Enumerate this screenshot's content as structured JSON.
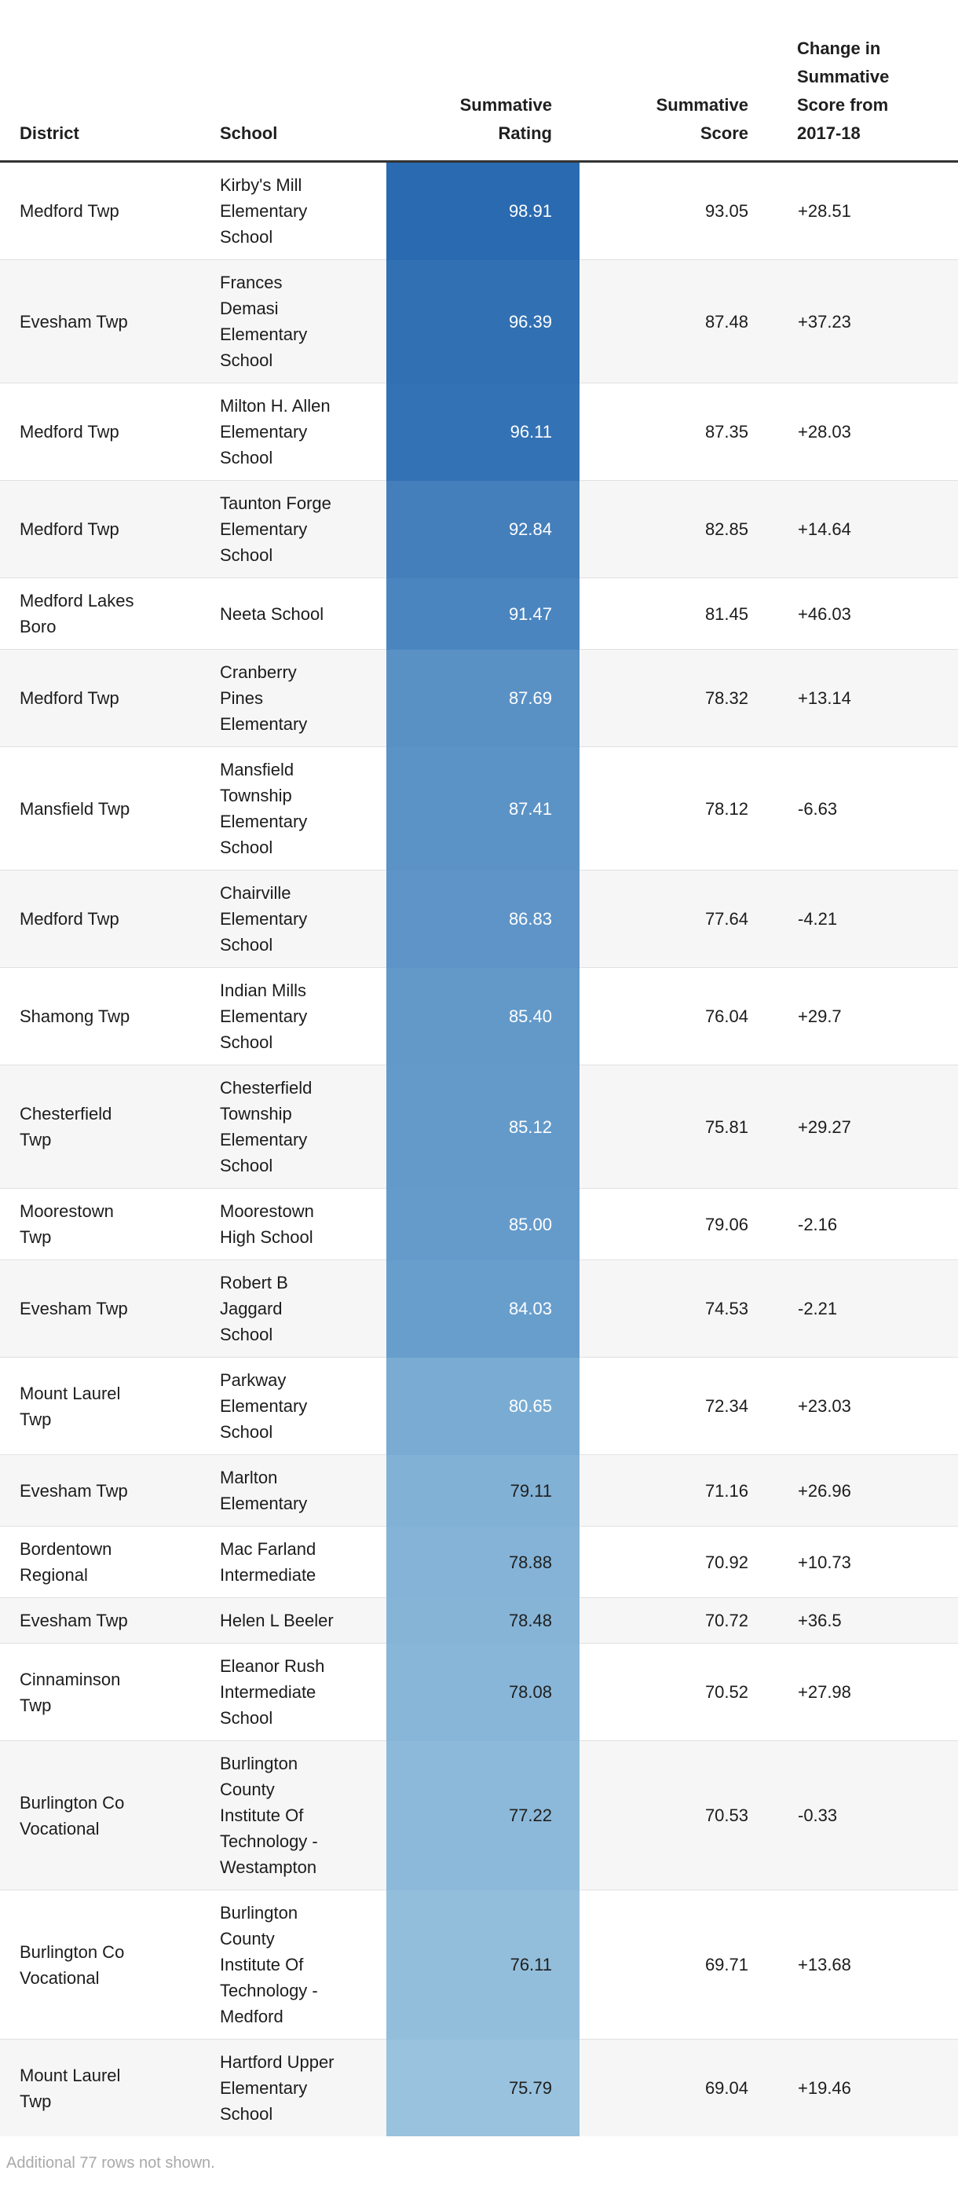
{
  "chart_data": {
    "type": "table",
    "columns": [
      {
        "id": "district",
        "label": "District"
      },
      {
        "id": "school",
        "label": "School"
      },
      {
        "id": "rating",
        "label": "Summative\nRating"
      },
      {
        "id": "score",
        "label": "Summative\nScore"
      },
      {
        "id": "change",
        "label": "Change in\nSummative\nScore from\n2017-18"
      }
    ],
    "rows": [
      {
        "district": "Medford Twp",
        "school": "Kirby's Mill Elementary School",
        "rating": "98.91",
        "score": "93.05",
        "change": "+28.51",
        "rating_bg": "#2a6ab0",
        "rating_text": "#ffffff"
      },
      {
        "district": "Evesham Twp",
        "school": "Frances Demasi Elementary School",
        "rating": "96.39",
        "score": "87.48",
        "change": "+37.23",
        "rating_bg": "#3170b3",
        "rating_text": "#ffffff"
      },
      {
        "district": "Medford Twp",
        "school": "Milton H. Allen Elementary School",
        "rating": "96.11",
        "score": "87.35",
        "change": "+28.03",
        "rating_bg": "#3372b5",
        "rating_text": "#ffffff"
      },
      {
        "district": "Medford Twp",
        "school": "Taunton Forge Elementary School",
        "rating": "92.84",
        "score": "82.85",
        "change": "+14.64",
        "rating_bg": "#447fbb",
        "rating_text": "#ffffff"
      },
      {
        "district": "Medford Lakes Boro",
        "school": "Neeta School",
        "rating": "91.47",
        "score": "81.45",
        "change": "+46.03",
        "rating_bg": "#4b85bf",
        "rating_text": "#ffffff"
      },
      {
        "district": "Medford Twp",
        "school": "Cranberry Pines Elementary",
        "rating": "87.69",
        "score": "78.32",
        "change": "+13.14",
        "rating_bg": "#5a91c5",
        "rating_text": "#ffffff"
      },
      {
        "district": "Mansfield Twp",
        "school": "Mansfield Township Elementary School",
        "rating": "87.41",
        "score": "78.12",
        "change": "-6.63",
        "rating_bg": "#5c93c6",
        "rating_text": "#ffffff"
      },
      {
        "district": "Medford Twp",
        "school": "Chairville Elementary School",
        "rating": "86.83",
        "score": "77.64",
        "change": "-4.21",
        "rating_bg": "#5e94c7",
        "rating_text": "#ffffff"
      },
      {
        "district": "Shamong Twp",
        "school": "Indian Mills Elementary School",
        "rating": "85.40",
        "score": "76.04",
        "change": "+29.7",
        "rating_bg": "#6299c9",
        "rating_text": "#ffffff"
      },
      {
        "district": "Chesterfield Twp",
        "school": "Chesterfield Township Elementary School",
        "rating": "85.12",
        "score": "75.81",
        "change": "+29.27",
        "rating_bg": "#649aca",
        "rating_text": "#ffffff"
      },
      {
        "district": "Moorestown Twp",
        "school": "Moorestown High School",
        "rating": "85.00",
        "score": "79.06",
        "change": "-2.16",
        "rating_bg": "#659bcb",
        "rating_text": "#ffffff"
      },
      {
        "district": "Evesham Twp",
        "school": "Robert B Jaggard School",
        "rating": "84.03",
        "score": "74.53",
        "change": "-2.21",
        "rating_bg": "#689ecc",
        "rating_text": "#ffffff"
      },
      {
        "district": "Mount Laurel Twp",
        "school": "Parkway Elementary School",
        "rating": "80.65",
        "score": "72.34",
        "change": "+23.03",
        "rating_bg": "#7aacd3",
        "rating_text": "#ffffff"
      },
      {
        "district": "Evesham Twp",
        "school": "Marlton Elementary",
        "rating": "79.11",
        "score": "71.16",
        "change": "+26.96",
        "rating_bg": "#82b1d6",
        "rating_text": "#1f1f1f"
      },
      {
        "district": "Bordentown Regional",
        "school": "Mac Farland Intermediate",
        "rating": "78.88",
        "score": "70.92",
        "change": "+10.73",
        "rating_bg": "#84b3d7",
        "rating_text": "#1f1f1f"
      },
      {
        "district": "Evesham Twp",
        "school": "Helen L Beeler",
        "rating": "78.48",
        "score": "70.72",
        "change": "+36.5",
        "rating_bg": "#86b4d7",
        "rating_text": "#1f1f1f"
      },
      {
        "district": "Cinnaminson Twp",
        "school": "Eleanor Rush Intermediate School",
        "rating": "78.08",
        "score": "70.52",
        "change": "+27.98",
        "rating_bg": "#88b6d8",
        "rating_text": "#1f1f1f"
      },
      {
        "district": "Burlington Co Vocational",
        "school": "Burlington County Institute Of Technology - Westampton",
        "rating": "77.22",
        "score": "70.53",
        "change": "-0.33",
        "rating_bg": "#8cb9da",
        "rating_text": "#1f1f1f"
      },
      {
        "district": "Burlington Co Vocational",
        "school": "Burlington County Institute Of Technology - Medford",
        "rating": "76.11",
        "score": "69.71",
        "change": "+13.68",
        "rating_bg": "#93bedb",
        "rating_text": "#1f1f1f"
      },
      {
        "district": "Mount Laurel Twp",
        "school": "Hartford Upper Elementary School",
        "rating": "75.79",
        "score": "69.04",
        "change": "+19.46",
        "rating_bg": "#98c2de",
        "rating_text": "#1f1f1f"
      }
    ],
    "note": "Additional 77 rows not shown.",
    "layout_hints": {
      "rating_color_scale": {
        "dark": "#2a6ab0",
        "light": "#98c2de"
      },
      "row_alt_bg": "#f6f6f6",
      "separator": "#e1e1e1",
      "header_rule": "#333333",
      "note_color": "#a9a9a9",
      "text_color": "#1c1c1c"
    }
  }
}
